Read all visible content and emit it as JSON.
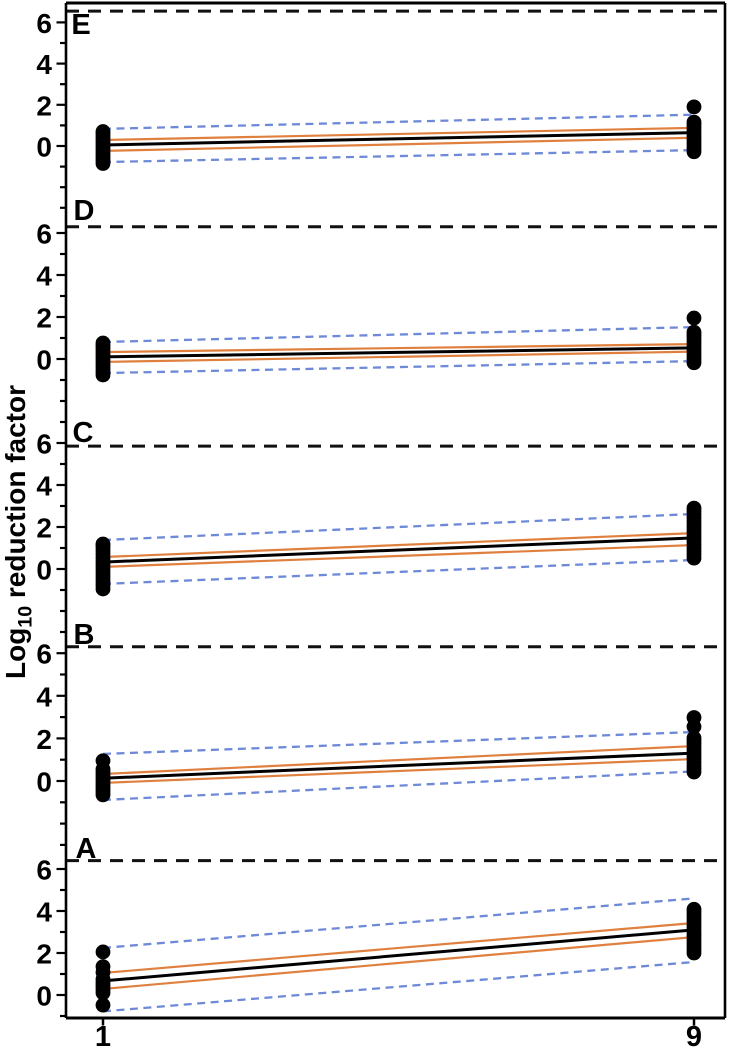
{
  "figure": {
    "ylabel_pre": "Log",
    "ylabel_sub": "10",
    "ylabel_post": " reduction factor"
  },
  "chart_data": {
    "type": "scatter",
    "title": "",
    "xlabel": "",
    "ylabel": "Log10 reduction factor",
    "x_ticks": [
      1,
      9
    ],
    "x_tick_labels": [
      "1",
      "9"
    ],
    "y_ticks": [
      0,
      2,
      4,
      6
    ],
    "x_range": [
      0.5,
      9.4
    ],
    "panel_y_range": [
      -3.4,
      6.9
    ],
    "grid": "off",
    "legend_position": "none",
    "colors": {
      "point": "#000000",
      "regression": "#000000",
      "confidence": "#E0803F",
      "prediction": "#6E89D8",
      "threshold": "#111111",
      "axis": "#000000"
    },
    "panels": [
      {
        "label": "E",
        "threshold": 6.55,
        "points_x1": [
          -0.85,
          -0.72,
          -0.6,
          -0.48,
          -0.36,
          -0.24,
          -0.12,
          0.0,
          0.12,
          0.24,
          0.36,
          0.48,
          0.6,
          0.7
        ],
        "points_x9": [
          -0.28,
          -0.13,
          0.02,
          0.17,
          0.32,
          0.47,
          0.62,
          0.77,
          0.92,
          1.05,
          1.16,
          1.9
        ],
        "regression": [
          0.05,
          0.65
        ],
        "ci_upper": [
          0.29,
          0.88
        ],
        "ci_lower": [
          -0.24,
          0.4
        ],
        "pi_upper": [
          0.83,
          1.52
        ],
        "pi_lower": [
          -0.78,
          -0.2
        ]
      },
      {
        "label": "D",
        "threshold": 6.3,
        "points_x1": [
          -0.76,
          -0.63,
          -0.5,
          -0.37,
          -0.24,
          -0.11,
          0.02,
          0.15,
          0.28,
          0.41,
          0.54,
          0.65,
          0.76
        ],
        "points_x9": [
          -0.18,
          -0.03,
          0.12,
          0.27,
          0.42,
          0.57,
          0.72,
          0.87,
          1.02,
          1.15,
          1.28,
          1.95
        ],
        "regression": [
          0.1,
          0.53
        ],
        "ci_upper": [
          0.33,
          0.71
        ],
        "ci_lower": [
          -0.14,
          0.35
        ],
        "pi_upper": [
          0.81,
          1.52
        ],
        "pi_lower": [
          -0.67,
          -0.1
        ]
      },
      {
        "label": "C",
        "threshold": 5.85,
        "points_x1": [
          -0.95,
          -0.8,
          -0.65,
          -0.5,
          -0.35,
          -0.2,
          -0.05,
          0.1,
          0.25,
          0.4,
          0.55,
          0.7,
          0.85,
          1.0,
          1.12,
          1.19
        ],
        "points_x9": [
          0.52,
          0.68,
          0.84,
          1.0,
          1.16,
          1.32,
          1.48,
          1.64,
          1.8,
          1.96,
          2.12,
          2.28,
          2.44,
          2.6,
          2.76,
          2.9
        ],
        "regression": [
          0.33,
          1.48
        ],
        "ci_upper": [
          0.57,
          1.71
        ],
        "ci_lower": [
          0.1,
          1.14
        ],
        "pi_upper": [
          1.38,
          2.62
        ],
        "pi_lower": [
          -0.71,
          0.43
        ]
      },
      {
        "label": "B",
        "threshold": 6.3,
        "points_x1": [
          -0.65,
          -0.53,
          -0.41,
          -0.29,
          -0.17,
          -0.05,
          0.07,
          0.19,
          0.31,
          0.43,
          0.55,
          0.95
        ],
        "points_x9": [
          0.42,
          0.57,
          0.72,
          0.87,
          1.02,
          1.17,
          1.32,
          1.47,
          1.62,
          1.77,
          1.9,
          2.02,
          2.55,
          2.98
        ],
        "regression": [
          0.13,
          1.31
        ],
        "ci_upper": [
          0.33,
          1.64
        ],
        "ci_lower": [
          -0.09,
          1.03
        ],
        "pi_upper": [
          1.27,
          2.3
        ],
        "pi_lower": [
          -0.89,
          0.45
        ]
      },
      {
        "label": "A",
        "threshold": 6.4,
        "points_x1": [
          -0.48,
          0.1,
          0.25,
          0.38,
          0.5,
          0.62,
          0.75,
          1.08,
          1.35,
          2.05
        ],
        "points_x9": [
          2.0,
          2.15,
          2.3,
          2.45,
          2.6,
          2.75,
          2.9,
          3.05,
          3.2,
          3.35,
          3.5,
          3.65,
          3.8,
          3.95,
          4.08
        ],
        "regression": [
          0.67,
          3.1
        ],
        "ci_upper": [
          1.05,
          3.43
        ],
        "ci_lower": [
          0.29,
          2.76
        ],
        "pi_upper": [
          2.24,
          4.6
        ],
        "pi_lower": [
          -0.78,
          1.57
        ]
      }
    ]
  }
}
